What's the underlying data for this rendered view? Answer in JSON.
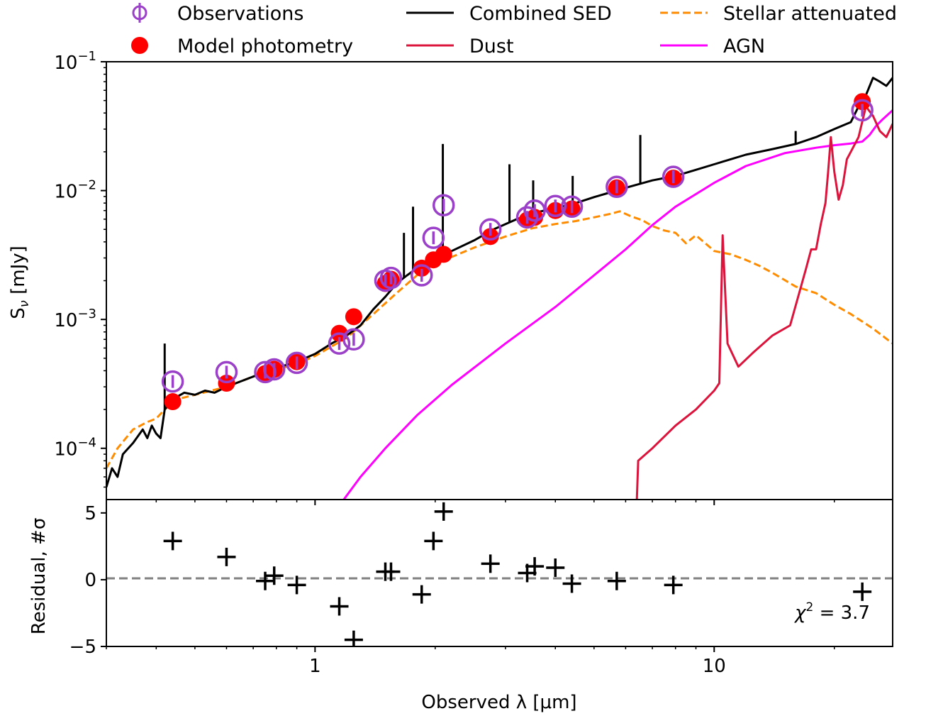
{
  "legend": {
    "observations": "Observations",
    "model_photometry": "Model photometry",
    "combined_sed": "Combined SED",
    "dust": "Dust",
    "stellar_attenuated": "Stellar attenuated",
    "agn": "AGN"
  },
  "axes": {
    "top_ylabel": "S",
    "top_ylabel_sub": "ν",
    "top_ylabel_unit": " [mJy]",
    "bottom_ylabel": "Residual, #σ",
    "xlabel": "Observed λ [μm]",
    "chi2_label": "χ",
    "chi2_sup": "2",
    "chi2_value": " = 3.7"
  },
  "colors": {
    "observations": "#9b40c8",
    "model": "#ff0000",
    "combined": "#000000",
    "dust": "#dc143c",
    "stellar": "#ff8c00",
    "agn": "#ff00ff",
    "zero_line": "#808080"
  },
  "chart_data": [
    {
      "type": "scatter",
      "xscale": "log",
      "yscale": "log",
      "xlim": [
        0.3,
        28
      ],
      "ylim": [
        4e-05,
        0.1
      ],
      "ylabel": "Sν [mJy]",
      "x_ticks": [
        {
          "value": 1,
          "label": "1"
        },
        {
          "value": 10,
          "label": "10"
        }
      ],
      "y_ticks": [
        {
          "value": 0.0001,
          "base": "10",
          "exp": "−4"
        },
        {
          "value": 0.001,
          "base": "10",
          "exp": "−3"
        },
        {
          "value": 0.01,
          "base": "10",
          "exp": "−2"
        },
        {
          "value": 0.1,
          "base": "10",
          "exp": "−1"
        }
      ],
      "legend_position": "top, outside plot",
      "series": [
        {
          "name": "Observations",
          "x": [
            0.44,
            0.6,
            0.75,
            0.79,
            0.9,
            1.15,
            1.25,
            1.5,
            1.55,
            1.85,
            1.98,
            2.1,
            2.75,
            3.4,
            3.55,
            4.0,
            4.4,
            5.7,
            7.9,
            23.5
          ],
          "y": [
            0.00033,
            0.00039,
            0.00039,
            0.00041,
            0.00046,
            0.00065,
            0.0007,
            0.002,
            0.0021,
            0.0022,
            0.0043,
            0.0077,
            0.005,
            0.0062,
            0.007,
            0.0076,
            0.0075,
            0.0107,
            0.0128,
            0.042
          ]
        },
        {
          "name": "Model photometry",
          "x": [
            0.44,
            0.6,
            0.75,
            0.79,
            0.9,
            1.15,
            1.25,
            1.5,
            1.55,
            1.85,
            1.98,
            2.1,
            2.75,
            3.4,
            3.55,
            4.0,
            4.4,
            5.7,
            7.9,
            23.5
          ],
          "y": [
            0.00023,
            0.00032,
            0.00038,
            0.00041,
            0.00047,
            0.00078,
            0.00105,
            0.0019,
            0.00205,
            0.0025,
            0.0029,
            0.0032,
            0.0044,
            0.0059,
            0.0062,
            0.007,
            0.0072,
            0.0105,
            0.0125,
            0.049
          ]
        },
        {
          "name": "Combined SED",
          "type": "line",
          "x": [
            0.3,
            0.31,
            0.32,
            0.33,
            0.35,
            0.37,
            0.38,
            0.39,
            0.4,
            0.41,
            0.42,
            0.44,
            0.47,
            0.5,
            0.53,
            0.56,
            0.6,
            0.65,
            0.7,
            0.75,
            0.8,
            0.9,
            1.0,
            1.1,
            1.2,
            1.3,
            1.4,
            1.5,
            1.6,
            1.7,
            1.8,
            1.9,
            2.0,
            2.2,
            2.5,
            2.8,
            3.2,
            3.6,
            4.0,
            4.5,
            5.0,
            5.5,
            6.0,
            7.0,
            8.0,
            9.0,
            10.0,
            11.0,
            12.0,
            14.0,
            16.0,
            18.0,
            20.0,
            22.0,
            23.0,
            24.0,
            25.0,
            26.0,
            27.0,
            28.0
          ],
          "y": [
            5e-05,
            7e-05,
            6e-05,
            9e-05,
            0.00011,
            0.00014,
            0.00012,
            0.00015,
            0.00013,
            0.00012,
            0.0002,
            0.00024,
            0.00027,
            0.00026,
            0.00028,
            0.00027,
            0.0003,
            0.00033,
            0.00036,
            0.00039,
            0.00042,
            0.00047,
            0.00054,
            0.00065,
            0.00075,
            0.0009,
            0.0012,
            0.0015,
            0.0019,
            0.0022,
            0.0025,
            0.0027,
            0.003,
            0.0034,
            0.0041,
            0.005,
            0.006,
            0.0068,
            0.0073,
            0.008,
            0.0089,
            0.0097,
            0.0105,
            0.012,
            0.013,
            0.0145,
            0.016,
            0.0175,
            0.019,
            0.021,
            0.023,
            0.026,
            0.03,
            0.034,
            0.045,
            0.055,
            0.075,
            0.07,
            0.065,
            0.075
          ],
          "spikes": [
            {
              "x": 0.42,
              "peak": 0.00065
            },
            {
              "x": 1.67,
              "peak": 0.0047
            },
            {
              "x": 1.76,
              "peak": 0.0075
            },
            {
              "x": 2.09,
              "peak": 0.023
            },
            {
              "x": 3.07,
              "peak": 0.016
            },
            {
              "x": 3.52,
              "peak": 0.012
            },
            {
              "x": 4.42,
              "peak": 0.013
            },
            {
              "x": 6.53,
              "peak": 0.027
            },
            {
              "x": 16.0,
              "peak": 0.029
            }
          ]
        },
        {
          "name": "Stellar attenuated",
          "type": "line",
          "x": [
            0.3,
            0.32,
            0.35,
            0.38,
            0.4,
            0.42,
            0.45,
            0.5,
            0.6,
            0.7,
            0.8,
            0.9,
            1.0,
            1.2,
            1.4,
            1.6,
            1.8,
            2.0,
            2.5,
            3.0,
            3.5,
            4.0,
            4.5,
            5.0,
            5.5,
            5.8,
            6.2,
            6.6,
            7.0,
            7.5,
            8.0,
            8.5,
            9.0,
            9.5,
            10.0,
            11.0,
            12.0,
            13.0,
            14.0,
            16.0,
            18.0,
            20.0,
            22.0,
            25.0,
            28.0
          ],
          "y": [
            7e-05,
            0.0001,
            0.00014,
            0.00016,
            0.00017,
            0.0002,
            0.00024,
            0.00026,
            0.0003,
            0.00036,
            0.00041,
            0.00045,
            0.00052,
            0.00072,
            0.0011,
            0.0016,
            0.0022,
            0.0027,
            0.0036,
            0.0044,
            0.0051,
            0.0055,
            0.0058,
            0.0062,
            0.0066,
            0.0069,
            0.0063,
            0.0059,
            0.0053,
            0.0049,
            0.0047,
            0.0039,
            0.0045,
            0.0039,
            0.0034,
            0.0032,
            0.0029,
            0.0026,
            0.0023,
            0.0018,
            0.0016,
            0.0013,
            0.0011,
            0.00085,
            0.00065
          ]
        },
        {
          "name": "AGN",
          "type": "line",
          "x": [
            1.18,
            1.3,
            1.5,
            1.8,
            2.2,
            3.0,
            4.0,
            5.0,
            6.0,
            7.0,
            8.0,
            10.0,
            12.0,
            15.0,
            18.0,
            20.0,
            22.0,
            23.5,
            24.5,
            25.5,
            26.5,
            28.0
          ],
          "y": [
            4e-05,
            6e-05,
            0.0001,
            0.00018,
            0.00031,
            0.00065,
            0.00125,
            0.0022,
            0.0035,
            0.0054,
            0.0075,
            0.0115,
            0.0155,
            0.0195,
            0.0215,
            0.0225,
            0.0232,
            0.024,
            0.027,
            0.032,
            0.036,
            0.042
          ]
        },
        {
          "name": "Dust",
          "type": "line",
          "x": [
            6.4,
            6.45,
            7.0,
            8.0,
            9.0,
            10.0,
            10.3,
            10.5,
            10.8,
            11.5,
            12.5,
            14.0,
            15.5,
            17.0,
            17.5,
            18.0,
            18.5,
            19.0,
            19.3,
            19.6,
            20.0,
            20.5,
            21.0,
            21.5,
            22.0,
            23.0,
            24.0,
            25.0,
            26.0,
            27.0,
            28.0
          ],
          "y": [
            4e-05,
            8e-05,
            0.0001,
            0.00015,
            0.0002,
            0.00028,
            0.00032,
            0.0045,
            0.00065,
            0.00043,
            0.00055,
            0.00075,
            0.0009,
            0.0025,
            0.0035,
            0.0035,
            0.0055,
            0.008,
            0.014,
            0.026,
            0.014,
            0.0085,
            0.011,
            0.0175,
            0.02,
            0.026,
            0.045,
            0.038,
            0.029,
            0.026,
            0.033
          ]
        }
      ]
    },
    {
      "type": "scatter",
      "xscale": "log",
      "xlim": [
        0.3,
        28
      ],
      "ylim": [
        -5,
        6
      ],
      "xlabel": "Observed λ [μm]",
      "ylabel": "Residual, #σ",
      "y_ticks": [
        {
          "value": -5,
          "label": "−5"
        },
        {
          "value": 0,
          "label": "0"
        },
        {
          "value": 5,
          "label": "5"
        }
      ],
      "reference_line": 0,
      "annotation": "χ2 = 3.7",
      "series": [
        {
          "name": "residuals",
          "x": [
            0.44,
            0.6,
            0.75,
            0.79,
            0.9,
            1.15,
            1.25,
            1.5,
            1.55,
            1.85,
            1.98,
            2.1,
            2.75,
            3.4,
            3.55,
            4.0,
            4.4,
            5.7,
            7.9,
            23.5
          ],
          "y": [
            2.9,
            1.7,
            -0.1,
            0.3,
            -0.4,
            -2.0,
            -4.5,
            0.6,
            0.6,
            -1.1,
            2.9,
            5.1,
            1.2,
            0.5,
            1.0,
            0.9,
            -0.3,
            -0.1,
            -0.4,
            -0.9
          ]
        }
      ]
    }
  ]
}
